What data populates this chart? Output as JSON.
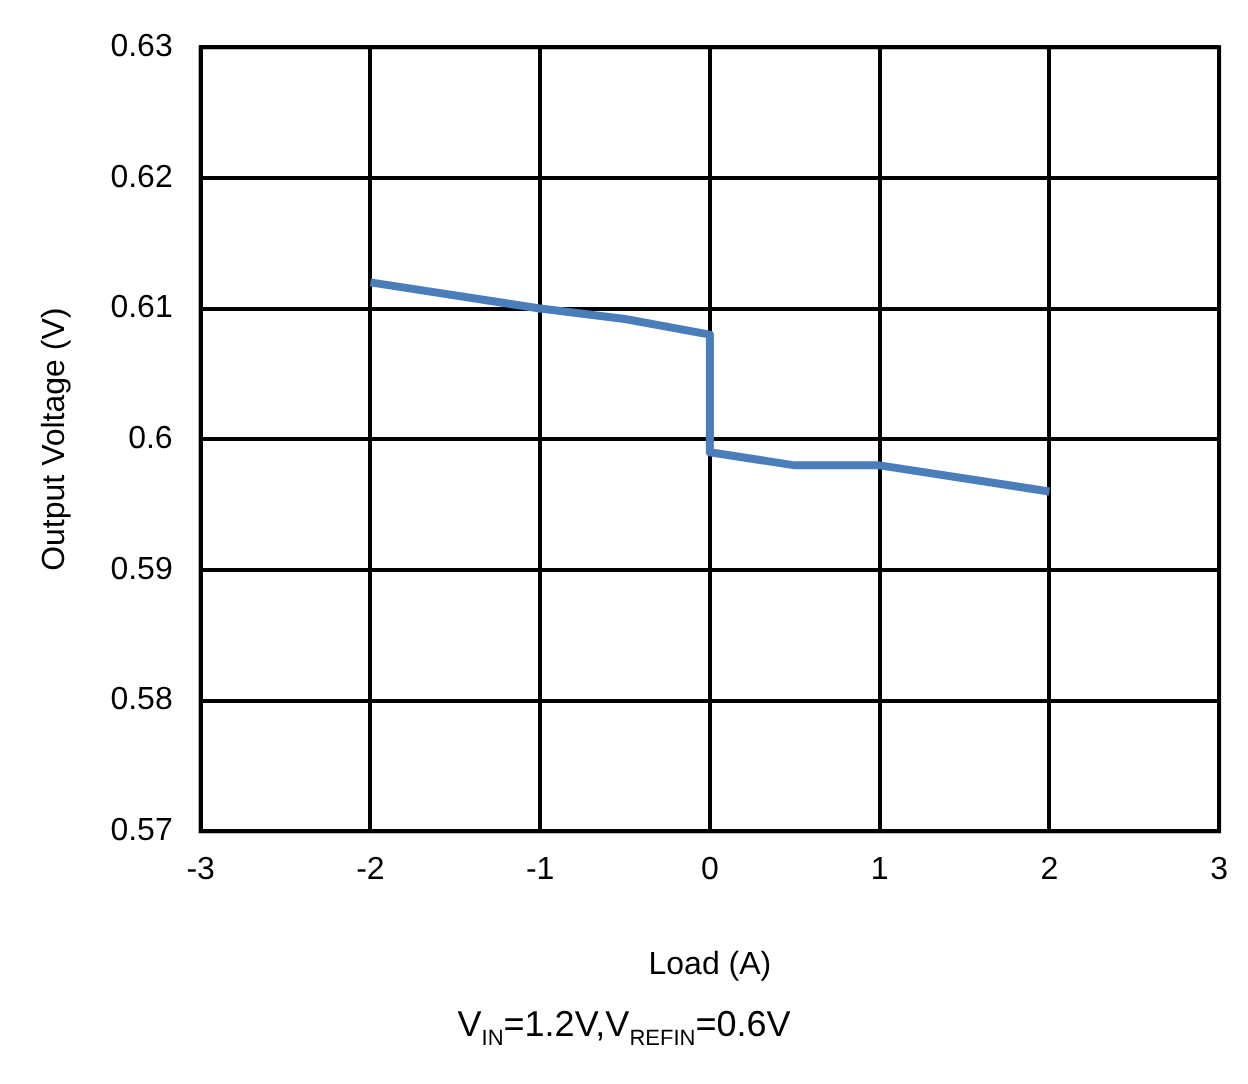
{
  "chart_data": {
    "type": "line",
    "xlabel": "Load (A)",
    "ylabel": "Output Voltage (V)",
    "annotations": [
      "V$_{IN}$=1.2V,V$_{REFIN}$=0.6V"
    ],
    "x": [
      -2,
      -1,
      -0.5,
      0,
      0,
      0.5,
      1,
      2
    ],
    "series": [
      {
        "color": "#4a7ebb",
        "values": [
          0.612,
          0.61,
          0.6092,
          0.608,
          0.599,
          0.598,
          0.598,
          0.596
        ]
      }
    ],
    "xlim": [
      -3,
      3
    ],
    "xticks": [
      -3,
      -2,
      -1,
      0,
      1,
      2,
      3
    ],
    "ylim": [
      0.57,
      0.63
    ],
    "yticks": [
      0.57,
      0.58,
      0.59,
      0.6,
      0.61,
      0.62,
      0.63
    ],
    "grid": true,
    "legend": false,
    "marker": "none",
    "line_style": "solid"
  }
}
